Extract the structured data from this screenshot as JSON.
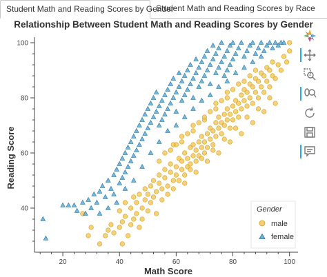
{
  "tabs": [
    {
      "label": "Student Math and Reading Scores by Gender",
      "active": true
    },
    {
      "label": "Student Math and Reading Scores by Race",
      "active": false
    }
  ],
  "toolbar": {
    "tools": [
      "bokeh-logo-icon",
      "pan-icon",
      "box-zoom-icon",
      "wheel-zoom-icon",
      "reset-icon",
      "save-icon",
      "hover-icon"
    ],
    "active_color": "#26aae1"
  },
  "chart_data": {
    "type": "scatter",
    "title": "Relationship Between Student Math and Reading Scores by Gender",
    "xlabel": "Math Score",
    "ylabel": "Reading Score",
    "xlim": [
      10,
      103
    ],
    "ylim": [
      24,
      102
    ],
    "xticks": [
      20,
      40,
      60,
      80,
      100
    ],
    "yticks": [
      40,
      60,
      80,
      100
    ],
    "grid": false,
    "legend": {
      "title": "Gender",
      "placement": "bottom-right"
    },
    "series": [
      {
        "name": "male",
        "marker": "circle",
        "color": "#f0c24e",
        "stroke": "#d4a21a",
        "points": [
          [
            27,
            38
          ],
          [
            29,
            30
          ],
          [
            30,
            33
          ],
          [
            33,
            27
          ],
          [
            35,
            30
          ],
          [
            36,
            32
          ],
          [
            37,
            34
          ],
          [
            38,
            31
          ],
          [
            40,
            33
          ],
          [
            40,
            39
          ],
          [
            41,
            35
          ],
          [
            41,
            27
          ],
          [
            42,
            42
          ],
          [
            42,
            37
          ],
          [
            43,
            30
          ],
          [
            44,
            40
          ],
          [
            44,
            34
          ],
          [
            45,
            36
          ],
          [
            45,
            44
          ],
          [
            46,
            38
          ],
          [
            46,
            42
          ],
          [
            47,
            33
          ],
          [
            47,
            45
          ],
          [
            48,
            40
          ],
          [
            48,
            36
          ],
          [
            49,
            43
          ],
          [
            49,
            47
          ],
          [
            50,
            39
          ],
          [
            50,
            45
          ],
          [
            51,
            42
          ],
          [
            51,
            48
          ],
          [
            52,
            44
          ],
          [
            52,
            50
          ],
          [
            53,
            38
          ],
          [
            53,
            46
          ],
          [
            54,
            49
          ],
          [
            54,
            52
          ],
          [
            55,
            43
          ],
          [
            55,
            47
          ],
          [
            56,
            51
          ],
          [
            56,
            54
          ],
          [
            57,
            48
          ],
          [
            57,
            45
          ],
          [
            58,
            53
          ],
          [
            58,
            56
          ],
          [
            59,
            50
          ],
          [
            59,
            47
          ],
          [
            60,
            52
          ],
          [
            60,
            55
          ],
          [
            61,
            58
          ],
          [
            61,
            50
          ],
          [
            62,
            54
          ],
          [
            62,
            57
          ],
          [
            63,
            60
          ],
          [
            63,
            52
          ],
          [
            64,
            55
          ],
          [
            64,
            58
          ],
          [
            65,
            62
          ],
          [
            65,
            56
          ],
          [
            66,
            59
          ],
          [
            66,
            63
          ],
          [
            67,
            57
          ],
          [
            67,
            61
          ],
          [
            68,
            64
          ],
          [
            68,
            59
          ],
          [
            69,
            62
          ],
          [
            69,
            66
          ],
          [
            70,
            60
          ],
          [
            70,
            64
          ],
          [
            71,
            67
          ],
          [
            71,
            62
          ],
          [
            72,
            65
          ],
          [
            72,
            69
          ],
          [
            73,
            63
          ],
          [
            73,
            68
          ],
          [
            74,
            71
          ],
          [
            74,
            66
          ],
          [
            75,
            69
          ],
          [
            75,
            73
          ],
          [
            76,
            67
          ],
          [
            76,
            71
          ],
          [
            77,
            74
          ],
          [
            77,
            70
          ],
          [
            78,
            72
          ],
          [
            78,
            76
          ],
          [
            79,
            69
          ],
          [
            79,
            74
          ],
          [
            80,
            77
          ],
          [
            80,
            72
          ],
          [
            81,
            75
          ],
          [
            81,
            79
          ],
          [
            82,
            73
          ],
          [
            82,
            78
          ],
          [
            83,
            81
          ],
          [
            83,
            76
          ],
          [
            84,
            79
          ],
          [
            84,
            83
          ],
          [
            85,
            77
          ],
          [
            85,
            82
          ],
          [
            86,
            80
          ],
          [
            86,
            85
          ],
          [
            87,
            78
          ],
          [
            87,
            84
          ],
          [
            88,
            82
          ],
          [
            88,
            87
          ],
          [
            89,
            80
          ],
          [
            89,
            86
          ],
          [
            90,
            84
          ],
          [
            90,
            89
          ],
          [
            91,
            82
          ],
          [
            91,
            88
          ],
          [
            92,
            86
          ],
          [
            92,
            91
          ],
          [
            93,
            84
          ],
          [
            93,
            90
          ],
          [
            94,
            88
          ],
          [
            94,
            93
          ],
          [
            95,
            87
          ],
          [
            96,
            92
          ],
          [
            97,
            90
          ],
          [
            98,
            95
          ],
          [
            99,
            93
          ],
          [
            100,
            97
          ],
          [
            100,
            100
          ],
          [
            59,
            63
          ],
          [
            62,
            66
          ],
          [
            66,
            70
          ],
          [
            70,
            72
          ],
          [
            74,
            76
          ],
          [
            78,
            80
          ],
          [
            56,
            60
          ],
          [
            60,
            63
          ],
          [
            64,
            67
          ],
          [
            68,
            71
          ],
          [
            72,
            75
          ],
          [
            76,
            79
          ],
          [
            80,
            83
          ],
          [
            84,
            86
          ],
          [
            88,
            90
          ],
          [
            54,
            57
          ],
          [
            58,
            61
          ],
          [
            62,
            64
          ],
          [
            66,
            68
          ],
          [
            70,
            73
          ],
          [
            74,
            78
          ],
          [
            78,
            82
          ],
          [
            82,
            85
          ],
          [
            86,
            88
          ],
          [
            65,
            54
          ],
          [
            69,
            58
          ],
          [
            73,
            61
          ],
          [
            77,
            65
          ],
          [
            81,
            69
          ],
          [
            85,
            73
          ],
          [
            89,
            76
          ],
          [
            93,
            80
          ],
          [
            63,
            49
          ],
          [
            67,
            53
          ],
          [
            71,
            57
          ],
          [
            75,
            60
          ],
          [
            79,
            64
          ],
          [
            83,
            67
          ],
          [
            87,
            71
          ],
          [
            91,
            75
          ],
          [
            95,
            78
          ]
        ]
      },
      {
        "name": "female",
        "marker": "triangle",
        "color": "#4fa8d8",
        "stroke": "#2a6f96",
        "points": [
          [
            13,
            36
          ],
          [
            14,
            29
          ],
          [
            20,
            41
          ],
          [
            22,
            41
          ],
          [
            24,
            41
          ],
          [
            25,
            39
          ],
          [
            27,
            42
          ],
          [
            28,
            38
          ],
          [
            29,
            43
          ],
          [
            30,
            40
          ],
          [
            31,
            45
          ],
          [
            32,
            42
          ],
          [
            33,
            46
          ],
          [
            34,
            48
          ],
          [
            35,
            44
          ],
          [
            36,
            50
          ],
          [
            37,
            47
          ],
          [
            38,
            52
          ],
          [
            38,
            45
          ],
          [
            39,
            54
          ],
          [
            40,
            49
          ],
          [
            40,
            56
          ],
          [
            41,
            51
          ],
          [
            41,
            58
          ],
          [
            42,
            53
          ],
          [
            42,
            60
          ],
          [
            43,
            55
          ],
          [
            43,
            62
          ],
          [
            44,
            57
          ],
          [
            44,
            64
          ],
          [
            45,
            59
          ],
          [
            45,
            66
          ],
          [
            46,
            61
          ],
          [
            46,
            68
          ],
          [
            47,
            63
          ],
          [
            47,
            70
          ],
          [
            48,
            65
          ],
          [
            48,
            72
          ],
          [
            49,
            67
          ],
          [
            49,
            74
          ],
          [
            50,
            69
          ],
          [
            50,
            76
          ],
          [
            51,
            71
          ],
          [
            51,
            78
          ],
          [
            52,
            73
          ],
          [
            52,
            80
          ],
          [
            53,
            75
          ],
          [
            53,
            82
          ],
          [
            54,
            77
          ],
          [
            54,
            70
          ],
          [
            55,
            79
          ],
          [
            55,
            72
          ],
          [
            56,
            81
          ],
          [
            56,
            74
          ],
          [
            57,
            83
          ],
          [
            57,
            76
          ],
          [
            58,
            85
          ],
          [
            58,
            78
          ],
          [
            59,
            80
          ],
          [
            59,
            87
          ],
          [
            60,
            82
          ],
          [
            60,
            75
          ],
          [
            61,
            84
          ],
          [
            61,
            89
          ],
          [
            62,
            86
          ],
          [
            62,
            79
          ],
          [
            63,
            88
          ],
          [
            63,
            81
          ],
          [
            64,
            90
          ],
          [
            64,
            83
          ],
          [
            65,
            85
          ],
          [
            65,
            92
          ],
          [
            66,
            87
          ],
          [
            66,
            80
          ],
          [
            67,
            89
          ],
          [
            67,
            94
          ],
          [
            68,
            91
          ],
          [
            68,
            84
          ],
          [
            69,
            93
          ],
          [
            69,
            86
          ],
          [
            70,
            95
          ],
          [
            70,
            88
          ],
          [
            71,
            90
          ],
          [
            71,
            97
          ],
          [
            72,
            92
          ],
          [
            72,
            85
          ],
          [
            73,
            94
          ],
          [
            73,
            99
          ],
          [
            74,
            96
          ],
          [
            74,
            89
          ],
          [
            75,
            98
          ],
          [
            75,
            91
          ],
          [
            76,
            93
          ],
          [
            76,
            100
          ],
          [
            77,
            95
          ],
          [
            77,
            88
          ],
          [
            78,
            97
          ],
          [
            78,
            90
          ],
          [
            79,
            99
          ],
          [
            79,
            92
          ],
          [
            80,
            94
          ],
          [
            80,
            100
          ],
          [
            81,
            96
          ],
          [
            82,
            98
          ],
          [
            83,
            100
          ],
          [
            84,
            95
          ],
          [
            85,
            97
          ],
          [
            86,
            99
          ],
          [
            87,
            100
          ],
          [
            88,
            96
          ],
          [
            89,
            98
          ],
          [
            90,
            100
          ],
          [
            91,
            97
          ],
          [
            92,
            99
          ],
          [
            93,
            100
          ],
          [
            94,
            98
          ],
          [
            95,
            100
          ],
          [
            96,
            99
          ],
          [
            97,
            100
          ],
          [
            98,
            100
          ],
          [
            33,
            38
          ],
          [
            36,
            40
          ],
          [
            39,
            42
          ],
          [
            42,
            47
          ],
          [
            45,
            50
          ],
          [
            48,
            55
          ],
          [
            51,
            60
          ],
          [
            54,
            64
          ],
          [
            57,
            68
          ],
          [
            60,
            70
          ],
          [
            63,
            73
          ],
          [
            66,
            76
          ],
          [
            69,
            79
          ],
          [
            72,
            81
          ],
          [
            75,
            84
          ],
          [
            78,
            86
          ],
          [
            81,
            89
          ],
          [
            84,
            91
          ],
          [
            87,
            93
          ],
          [
            90,
            95
          ]
        ]
      }
    ]
  }
}
